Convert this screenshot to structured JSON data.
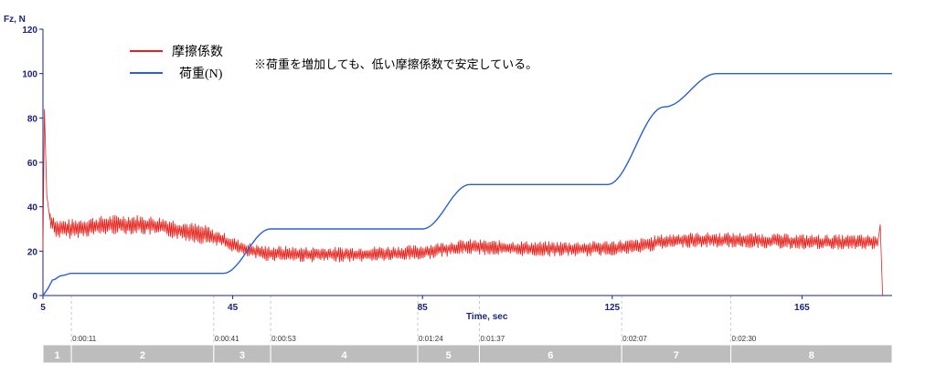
{
  "chart_data": {
    "type": "line",
    "title": "",
    "xlabel": "Time, sec",
    "ylabel": "Fz, N",
    "xlim": [
      5,
      184
    ],
    "ylim": [
      0,
      120
    ],
    "x_ticks": [
      5,
      45,
      85,
      125,
      165
    ],
    "y_ticks": [
      0,
      20,
      40,
      60,
      80,
      100,
      120
    ],
    "legend_position": "top-left",
    "annotation": "※荷重を増加しても、低い摩擦係数で安定している。",
    "series": [
      {
        "name": "摩擦係数",
        "color": "#e8201a",
        "points": [
          [
            5,
            20
          ],
          [
            5.3,
            84
          ],
          [
            5.8,
            45
          ],
          [
            6.5,
            34
          ],
          [
            8,
            30
          ],
          [
            11,
            30
          ],
          [
            15,
            31
          ],
          [
            20,
            32
          ],
          [
            25,
            32
          ],
          [
            30,
            31
          ],
          [
            35,
            29
          ],
          [
            40,
            27
          ],
          [
            43,
            25
          ],
          [
            46,
            22
          ],
          [
            49,
            20
          ],
          [
            52,
            19
          ],
          [
            55,
            19
          ],
          [
            60,
            18.5
          ],
          [
            70,
            18.5
          ],
          [
            80,
            19
          ],
          [
            85,
            19.5
          ],
          [
            90,
            21
          ],
          [
            95,
            22
          ],
          [
            100,
            21.5
          ],
          [
            110,
            21
          ],
          [
            120,
            21
          ],
          [
            125,
            21.5
          ],
          [
            130,
            22
          ],
          [
            135,
            24
          ],
          [
            140,
            25
          ],
          [
            150,
            25
          ],
          [
            160,
            24.5
          ],
          [
            170,
            24
          ],
          [
            175,
            24
          ],
          [
            181,
            24
          ],
          [
            181.5,
            32
          ],
          [
            182,
            0
          ]
        ],
        "noise_amplitude": 3.5
      },
      {
        "name": "荷重(N)",
        "color": "#2a5fd6",
        "points": [
          [
            5,
            0
          ],
          [
            6,
            3
          ],
          [
            7,
            7
          ],
          [
            9,
            9
          ],
          [
            11,
            10
          ],
          [
            43,
            10
          ],
          [
            53,
            30
          ],
          [
            85,
            30
          ],
          [
            95,
            50
          ],
          [
            124,
            50
          ],
          [
            136,
            85
          ],
          [
            147,
            100
          ],
          [
            184,
            100
          ]
        ]
      }
    ],
    "timestamps": [
      {
        "t": 11,
        "label": "0:00:11"
      },
      {
        "t": 41,
        "label": "0:00:41"
      },
      {
        "t": 53,
        "label": "0:00:53"
      },
      {
        "t": 84,
        "label": "0:01:24"
      },
      {
        "t": 97,
        "label": "0:01:37"
      },
      {
        "t": 127,
        "label": "0:02:07"
      },
      {
        "t": 150,
        "label": "0:02:30"
      }
    ],
    "segments": [
      {
        "label": "1",
        "start": 5,
        "end": 11
      },
      {
        "label": "2",
        "start": 11,
        "end": 41
      },
      {
        "label": "3",
        "start": 41,
        "end": 53
      },
      {
        "label": "4",
        "start": 53,
        "end": 84
      },
      {
        "label": "5",
        "start": 84,
        "end": 97
      },
      {
        "label": "6",
        "start": 97,
        "end": 127
      },
      {
        "label": "7",
        "start": 127,
        "end": 150
      },
      {
        "label": "8",
        "start": 150,
        "end": 184
      }
    ]
  }
}
